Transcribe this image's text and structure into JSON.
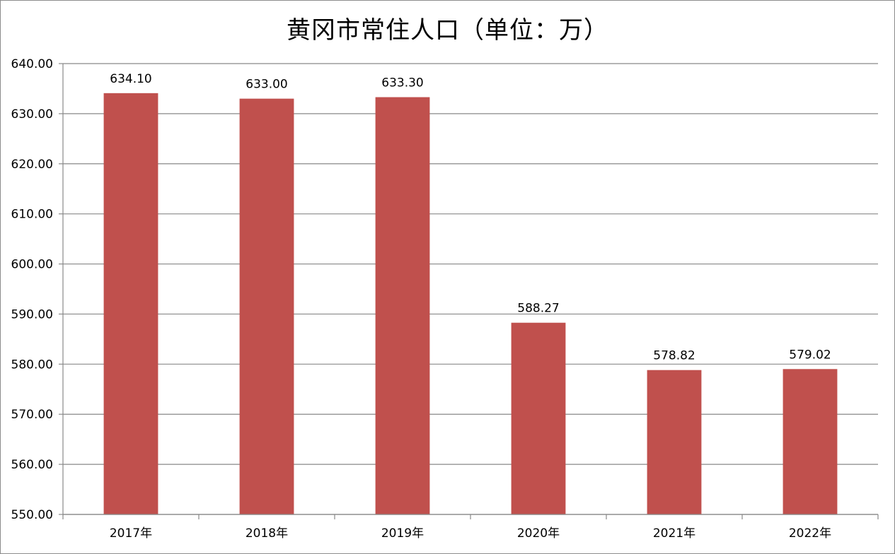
{
  "chart_data": {
    "type": "bar",
    "title": "黄冈市常住人口（单位：万）",
    "categories": [
      "2017年",
      "2018年",
      "2019年",
      "2020年",
      "2021年",
      "2022年"
    ],
    "values": [
      634.1,
      633.0,
      633.3,
      588.27,
      578.82,
      579.02
    ],
    "data_labels": [
      "634.10",
      "633.00",
      "633.30",
      "588.27",
      "578.82",
      "579.02"
    ],
    "yticks": [
      "550.00",
      "560.00",
      "570.00",
      "580.00",
      "590.00",
      "600.00",
      "610.00",
      "620.00",
      "630.00",
      "640.00"
    ],
    "ylim": [
      550,
      640
    ],
    "ytick_step": 10,
    "grid": true,
    "legend": "none",
    "colors": {
      "bar": "#c0504d",
      "grid": "#898989",
      "axis": "#898989",
      "text": "#000000"
    }
  }
}
